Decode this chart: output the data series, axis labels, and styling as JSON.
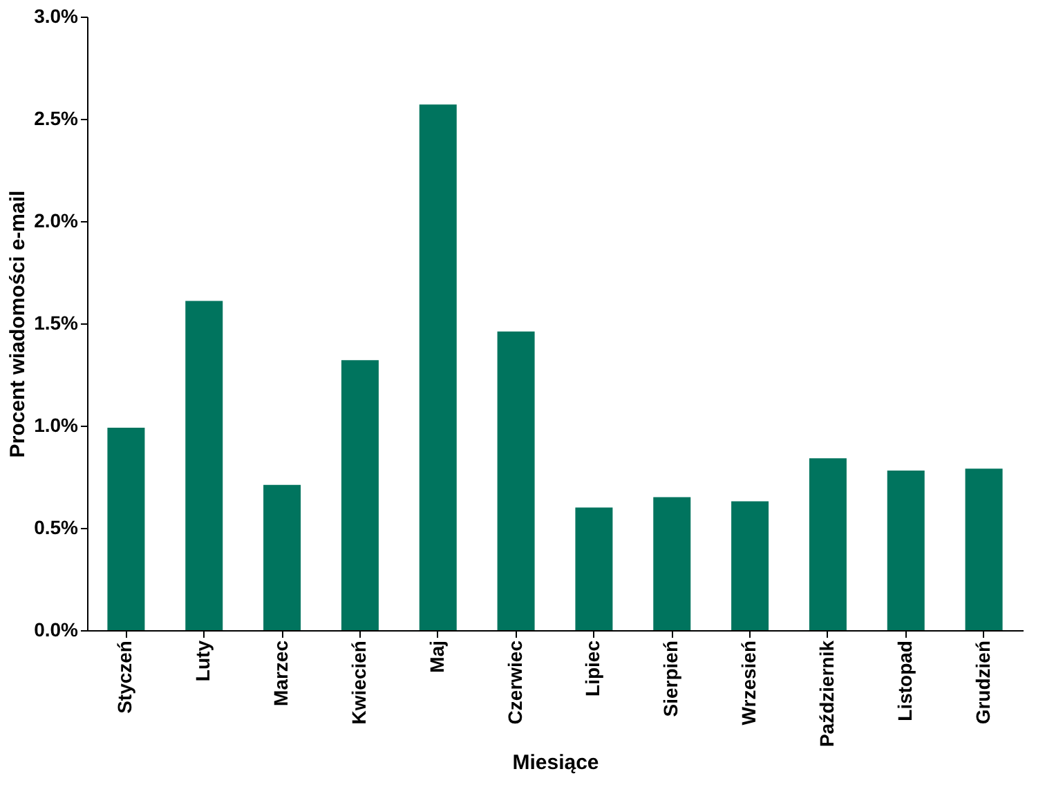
{
  "chart_data": {
    "type": "bar",
    "xlabel": "Miesiące",
    "ylabel": "Procent wiadomości e-mail",
    "categories": [
      "Styczeń",
      "Luty",
      "Marzec",
      "Kwiecień",
      "Maj",
      "Czerwiec",
      "Lipiec",
      "Sierpień",
      "Wrzesień",
      "Październik",
      "Listopad",
      "Grudzień"
    ],
    "values": [
      0.99,
      1.61,
      0.71,
      1.32,
      2.57,
      1.46,
      0.6,
      0.65,
      0.63,
      0.84,
      0.78,
      0.79
    ],
    "color": "#00745e",
    "ylim": [
      0,
      3
    ],
    "yticks": [
      {
        "value": 0,
        "label": "0.0%"
      },
      {
        "value": 0.5,
        "label": "0.5%"
      },
      {
        "value": 1,
        "label": "1.0%"
      },
      {
        "value": 1.5,
        "label": "1.5%"
      },
      {
        "value": 2,
        "label": "2.0%"
      },
      {
        "value": 2.5,
        "label": "2.5%"
      },
      {
        "value": 3,
        "label": "3.0%"
      }
    ],
    "grid": false
  }
}
